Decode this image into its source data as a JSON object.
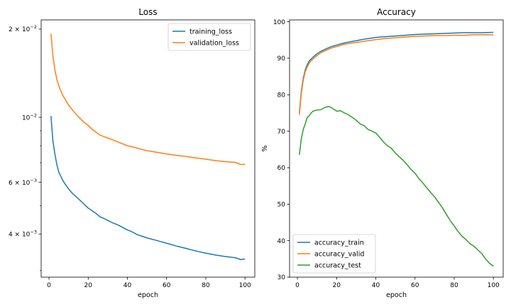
{
  "chart_data": [
    {
      "type": "line",
      "title": "Loss",
      "xlabel": "epoch",
      "ylabel": "",
      "yscale": "log",
      "xlim": [
        -4,
        105
      ],
      "ylim": [
        0.00285,
        0.0215
      ],
      "xticks": [
        0,
        20,
        40,
        60,
        80,
        100
      ],
      "xtick_labels": [
        "0",
        "20",
        "40",
        "60",
        "80",
        "100"
      ],
      "yticks": [
        0.02,
        0.01,
        0.006,
        0.004
      ],
      "ytick_labels": [
        {
          "base": "2 × 10",
          "exp": "−2"
        },
        {
          "base": "10",
          "exp": "−2"
        },
        {
          "base": "6 × 10",
          "exp": "−3"
        },
        {
          "base": "4 × 10",
          "exp": "−3"
        }
      ],
      "grid": false,
      "legend_position": "top-right",
      "series": [
        {
          "name": "training_loss",
          "color": "#1f77b4",
          "x": [
            1,
            2,
            3,
            4,
            5,
            6,
            7,
            8,
            10,
            12,
            14,
            16,
            18,
            20,
            22,
            24,
            26,
            28,
            30,
            32,
            35,
            38,
            40,
            42,
            45,
            48,
            50,
            55,
            60,
            65,
            70,
            75,
            80,
            85,
            90,
            95,
            98,
            100
          ],
          "y": [
            0.0101,
            0.0083,
            0.0075,
            0.0069,
            0.0065,
            0.0063,
            0.0061,
            0.00595,
            0.0057,
            0.0055,
            0.00535,
            0.0052,
            0.00505,
            0.0049,
            0.0048,
            0.0047,
            0.00458,
            0.00452,
            0.00445,
            0.00438,
            0.0043,
            0.0042,
            0.00413,
            0.00408,
            0.00398,
            0.00392,
            0.00388,
            0.0038,
            0.00372,
            0.00364,
            0.00357,
            0.0035,
            0.00344,
            0.00339,
            0.00335,
            0.00332,
            0.00327,
            0.00329
          ]
        },
        {
          "name": "validation_loss",
          "color": "#ff7f0e",
          "x": [
            1,
            2,
            3,
            4,
            5,
            6,
            7,
            8,
            10,
            12,
            14,
            16,
            18,
            20,
            22,
            24,
            26,
            28,
            30,
            32,
            35,
            38,
            40,
            42,
            45,
            48,
            50,
            55,
            60,
            65,
            70,
            75,
            80,
            85,
            90,
            95,
            98,
            100
          ],
          "y": [
            0.0193,
            0.0162,
            0.0145,
            0.0135,
            0.0128,
            0.0123,
            0.0119,
            0.0116,
            0.011,
            0.0106,
            0.0102,
            0.0099,
            0.0096,
            0.0094,
            0.0091,
            0.0089,
            0.0087,
            0.0086,
            0.0085,
            0.0084,
            0.00825,
            0.0081,
            0.008,
            0.00795,
            0.00785,
            0.00775,
            0.0077,
            0.0076,
            0.0075,
            0.00742,
            0.00735,
            0.00727,
            0.0072,
            0.00712,
            0.00706,
            0.00702,
            0.0069,
            0.00692
          ]
        }
      ]
    },
    {
      "type": "line",
      "title": "Accuracy",
      "xlabel": "epoch",
      "ylabel": "%",
      "xlim": [
        -4,
        105
      ],
      "ylim": [
        30,
        100.5
      ],
      "xticks": [
        0,
        20,
        40,
        60,
        80,
        100
      ],
      "xtick_labels": [
        "0",
        "20",
        "40",
        "60",
        "80",
        "100"
      ],
      "yticks": [
        30,
        40,
        50,
        60,
        70,
        80,
        90,
        100
      ],
      "ytick_labels": [
        "30",
        "40",
        "50",
        "60",
        "70",
        "80",
        "90",
        "100"
      ],
      "grid": false,
      "legend_position": "bottom-left",
      "series": [
        {
          "name": "accuracy_train",
          "color": "#1f77b4",
          "x": [
            1,
            2,
            3,
            4,
            5,
            6,
            7,
            8,
            10,
            12,
            14,
            16,
            18,
            20,
            22,
            24,
            26,
            28,
            30,
            35,
            40,
            45,
            50,
            55,
            60,
            65,
            70,
            75,
            80,
            85,
            90,
            95,
            100
          ],
          "y": [
            75,
            81,
            84.5,
            86.8,
            88.2,
            89.2,
            89.8,
            90.3,
            91.2,
            91.9,
            92.4,
            92.9,
            93.3,
            93.6,
            93.9,
            94.2,
            94.4,
            94.6,
            94.8,
            95.3,
            95.7,
            95.9,
            96.1,
            96.3,
            96.5,
            96.6,
            96.7,
            96.8,
            96.9,
            97,
            97,
            97,
            97.1
          ]
        },
        {
          "name": "accuracy_valid",
          "color": "#ff7f0e",
          "x": [
            1,
            2,
            3,
            4,
            5,
            6,
            7,
            8,
            10,
            12,
            14,
            16,
            18,
            20,
            22,
            24,
            26,
            28,
            30,
            35,
            40,
            45,
            50,
            55,
            60,
            65,
            70,
            75,
            80,
            85,
            90,
            95,
            100
          ],
          "y": [
            74.5,
            80.5,
            84,
            86.3,
            87.6,
            88.6,
            89.3,
            89.8,
            90.7,
            91.5,
            92,
            92.5,
            92.9,
            93.2,
            93.5,
            93.8,
            94,
            94.2,
            94.3,
            94.7,
            95.1,
            95.4,
            95.6,
            95.8,
            96,
            96.1,
            96.2,
            96.2,
            96.3,
            96.3,
            96.4,
            96.4,
            96.4
          ]
        },
        {
          "name": "accuracy_test",
          "color": "#2ca02c",
          "x": [
            1,
            2,
            3,
            4,
            5,
            6,
            7,
            8,
            10,
            12,
            14,
            16,
            18,
            20,
            22,
            24,
            26,
            28,
            30,
            32,
            34,
            36,
            38,
            40,
            42,
            44,
            46,
            48,
            50,
            52,
            54,
            56,
            58,
            60,
            62,
            64,
            66,
            68,
            70,
            72,
            74,
            76,
            78,
            80,
            82,
            84,
            86,
            88,
            90,
            92,
            94,
            96,
            98,
            100
          ],
          "y": [
            63.5,
            68,
            70.5,
            72,
            73.8,
            74.2,
            75,
            75.5,
            75.8,
            75.9,
            76.5,
            76.8,
            76.2,
            75.5,
            75.6,
            75,
            74.5,
            73.8,
            73,
            72,
            71.5,
            70.5,
            70,
            69.5,
            68.3,
            67,
            66,
            65.3,
            64,
            63,
            62,
            60.8,
            59.5,
            58.5,
            57,
            55.8,
            54.5,
            53.2,
            52,
            50.5,
            49,
            47.2,
            45.5,
            44,
            42.5,
            41.2,
            40.3,
            39.2,
            38.5,
            37.5,
            36.5,
            35,
            33.8,
            33
          ]
        }
      ]
    }
  ]
}
